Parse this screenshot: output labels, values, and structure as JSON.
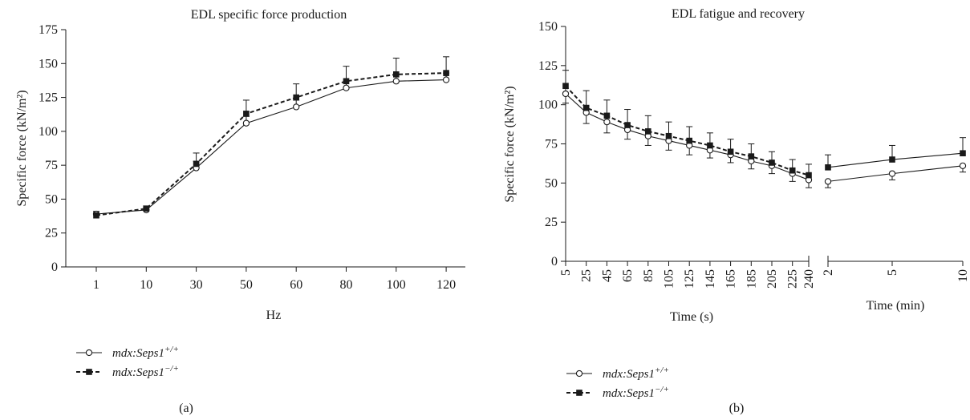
{
  "chart_data": [
    {
      "panel": "(a)",
      "type": "line",
      "title": "EDL specific force production",
      "xlabel": "Hz",
      "ylabel": "Specific force (kN/m²)",
      "ylim": [
        0,
        175
      ],
      "yticks": [
        0,
        25,
        50,
        75,
        100,
        125,
        150,
        175
      ],
      "categories": [
        "1",
        "10",
        "30",
        "50",
        "60",
        "80",
        "100",
        "120"
      ],
      "series": [
        {
          "name": "mdx:Seps1+/+",
          "values": [
            39,
            42,
            73,
            106,
            118,
            132,
            137,
            138
          ],
          "error": [
            2,
            2,
            5,
            5,
            5,
            5,
            5,
            5
          ],
          "marker": "open-circle",
          "line": "solid"
        },
        {
          "name": "mdx:Seps1−/+",
          "values": [
            38,
            43,
            76,
            113,
            125,
            137,
            142,
            143
          ],
          "error": [
            2,
            2,
            8,
            10,
            10,
            11,
            12,
            12
          ],
          "marker": "filled-square",
          "line": "dashed"
        }
      ],
      "legend": [
        {
          "prefix": "mdx:Seps1",
          "sup": "+/+"
        },
        {
          "prefix": "mdx:Seps1",
          "sup": "−/+"
        }
      ]
    },
    {
      "panel": "(b)",
      "type": "line",
      "title": "EDL fatigue and recovery",
      "ylabel": "Specific force (kN/m²)",
      "ylim": [
        0,
        150
      ],
      "yticks": [
        0,
        25,
        50,
        75,
        100,
        125,
        150
      ],
      "fatigue": {
        "xlabel": "Time (s)",
        "x": [
          "5",
          "25",
          "45",
          "65",
          "85",
          "105",
          "125",
          "145",
          "165",
          "185",
          "205",
          "225",
          "240"
        ],
        "series": [
          {
            "name": "mdx:Seps1+/+",
            "values": [
              107,
              95,
              89,
              84,
              80,
              77,
              74,
              71,
              68,
              64,
              61,
              56,
              52
            ],
            "error": [
              6,
              7,
              7,
              6,
              6,
              6,
              6,
              5,
              5,
              5,
              5,
              5,
              5
            ]
          },
          {
            "name": "mdx:Seps1−/+",
            "values": [
              112,
              98,
              93,
              87,
              83,
              80,
              77,
              74,
              70,
              67,
              63,
              58,
              55
            ],
            "error": [
              10,
              11,
              10,
              10,
              10,
              9,
              9,
              8,
              8,
              8,
              7,
              7,
              7
            ]
          }
        ]
      },
      "recovery": {
        "xlabel": "Time (min)",
        "x": [
          "2",
          "5",
          "10"
        ],
        "series": [
          {
            "name": "mdx:Seps1+/+",
            "values": [
              51,
              56,
              61
            ],
            "error": [
              4,
              4,
              4
            ]
          },
          {
            "name": "mdx:Seps1−/+",
            "values": [
              60,
              65,
              69
            ],
            "error": [
              8,
              9,
              10
            ]
          }
        ]
      },
      "legend": [
        {
          "prefix": "mdx:Seps1",
          "sup": "+/+"
        },
        {
          "prefix": "mdx:Seps1",
          "sup": "−/+"
        }
      ]
    }
  ],
  "colors": {
    "ink": "#1a1a1a",
    "open_marker_fill": "#ffffff"
  }
}
